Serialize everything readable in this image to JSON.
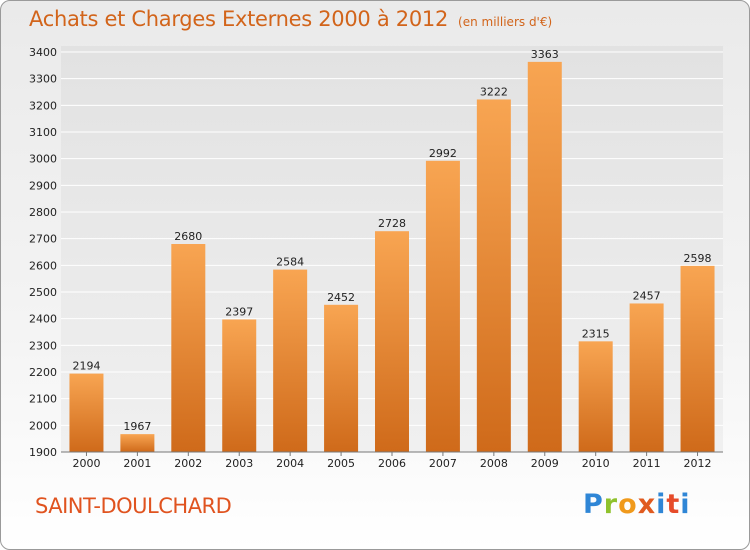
{
  "title": "Achats et Charges Externes 2000 à 2012",
  "unit": "(en milliers d'€)",
  "city": "SAINT-DOULCHARD",
  "logo": {
    "letters": [
      "P",
      "r",
      "o",
      "x",
      "i",
      "t",
      "i"
    ]
  },
  "chart_data": {
    "type": "bar",
    "title": "Achats et Charges Externes 2000 à 2012",
    "subtitle": "(en milliers d'€)",
    "xlabel": "",
    "ylabel": "",
    "categories": [
      "2000",
      "2001",
      "2002",
      "2003",
      "2004",
      "2005",
      "2006",
      "2007",
      "2008",
      "2009",
      "2010",
      "2011",
      "2012"
    ],
    "values": [
      2194,
      1967,
      2680,
      2397,
      2584,
      2452,
      2728,
      2992,
      3222,
      3363,
      2315,
      2457,
      2598
    ],
    "ylim": [
      1900,
      3400
    ],
    "yticks": [
      1900,
      2000,
      2100,
      2200,
      2300,
      2400,
      2500,
      2600,
      2700,
      2800,
      2900,
      3000,
      3100,
      3200,
      3300,
      3400
    ],
    "grid": true,
    "bar_color": "#f0953e"
  }
}
